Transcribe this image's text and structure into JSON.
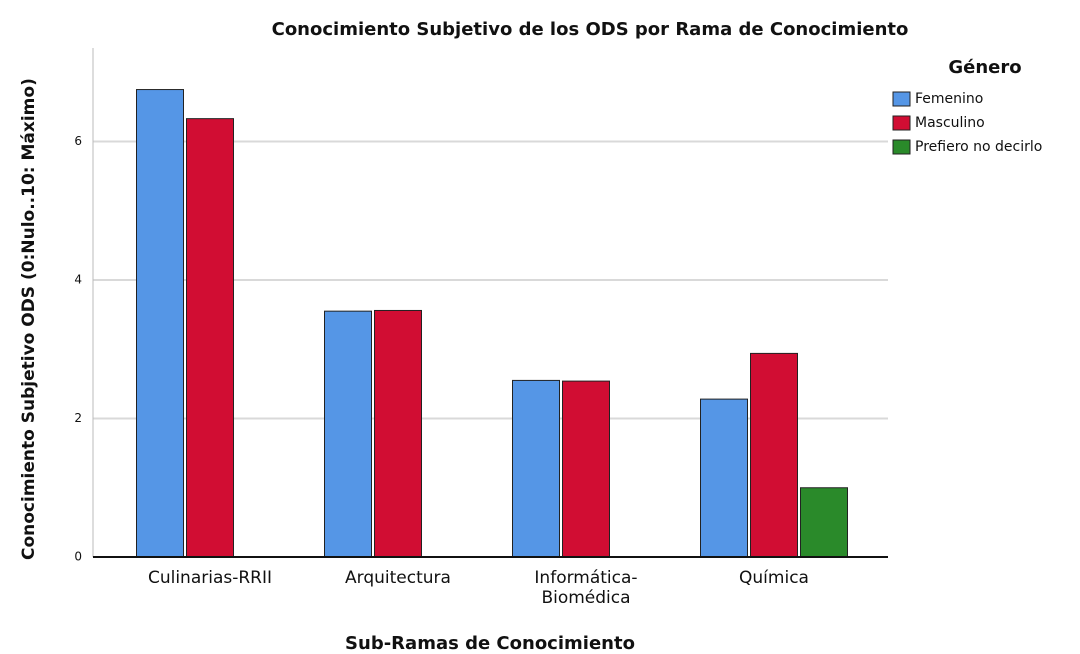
{
  "chart_data": {
    "type": "bar",
    "title": "Conocimiento Subjetivo de los ODS por Rama de Conocimiento",
    "x_label": "Sub-Ramas de Conocimiento",
    "y_label": "Conocimiento Subjetivo ODS (0:Nulo..10: Máximo)",
    "legend_title": "Género",
    "categories": [
      "Culinarias-RRII",
      "Arquitectura",
      "Informática-Biomédica",
      "Química"
    ],
    "series": [
      {
        "name": "Femenino",
        "color": "#5596e6",
        "values": [
          6.75,
          3.55,
          2.55,
          2.28
        ]
      },
      {
        "name": "Masculino",
        "color": "#d10d33",
        "values": [
          6.33,
          3.56,
          2.54,
          2.94
        ]
      },
      {
        "name": "Prefiero no decirlo",
        "color": "#2a8a2a",
        "values": [
          null,
          null,
          null,
          1.0
        ]
      }
    ],
    "ylim": [
      0,
      7.35
    ],
    "yticks": [
      0,
      2,
      4,
      6
    ],
    "grid": true,
    "legend": "right"
  }
}
